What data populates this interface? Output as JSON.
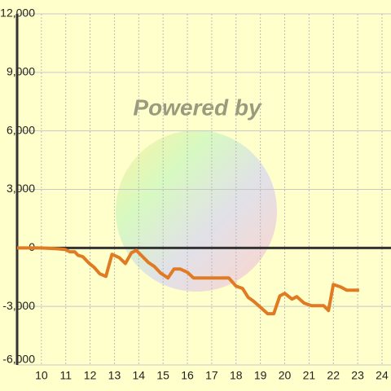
{
  "chart_data": {
    "type": "line",
    "watermark": "Powered by",
    "x": [
      9,
      9.97,
      10.6,
      10.97,
      11.17,
      11.37,
      11.5,
      11.7,
      11.97,
      12.17,
      12.4,
      12.65,
      12.9,
      13.2,
      13.45,
      13.7,
      13.9,
      14.1,
      14.4,
      14.65,
      14.9,
      15.2,
      15.45,
      15.7,
      16,
      16.25,
      16.5,
      17.7,
      18,
      18.27,
      18.5,
      18.7,
      19,
      19.3,
      19.55,
      19.8,
      20,
      20.3,
      20.5,
      20.8,
      21.1,
      21.4,
      21.6,
      21.8,
      22,
      22.3,
      22.55,
      23.06
    ],
    "series": [
      {
        "color": "#e07b24",
        "values": [
          0,
          0,
          -40,
          -80,
          -200,
          -200,
          -375,
          -450,
          -800,
          -1000,
          -1330,
          -1460,
          -330,
          -500,
          -800,
          -250,
          -125,
          -375,
          -750,
          -960,
          -1290,
          -1540,
          -1080,
          -1080,
          -1250,
          -1540,
          -1540,
          -1540,
          -1960,
          -2080,
          -2540,
          -2710,
          -3040,
          -3375,
          -3375,
          -2460,
          -2330,
          -2625,
          -2500,
          -2830,
          -2960,
          -2960,
          -2960,
          -3210,
          -1875,
          -2000,
          -2170,
          -2170
        ]
      }
    ],
    "xlim": [
      9,
      24.37
    ],
    "xticks": [
      10,
      11,
      12,
      13,
      14,
      15,
      16,
      17,
      18,
      19,
      20,
      21,
      22,
      23,
      24
    ],
    "ylim": [
      -6000,
      12000
    ],
    "yticks": [
      {
        "value": -6000,
        "label": "-6,000"
      },
      {
        "value": -3000,
        "label": "-3,000"
      },
      0,
      {
        "value": 3000,
        "label": "3,000"
      },
      {
        "value": 6000,
        "label": "6,000"
      },
      {
        "value": 9000,
        "label": "9,000"
      },
      {
        "value": 12000,
        "label": "12,000"
      }
    ],
    "grid": true
  }
}
